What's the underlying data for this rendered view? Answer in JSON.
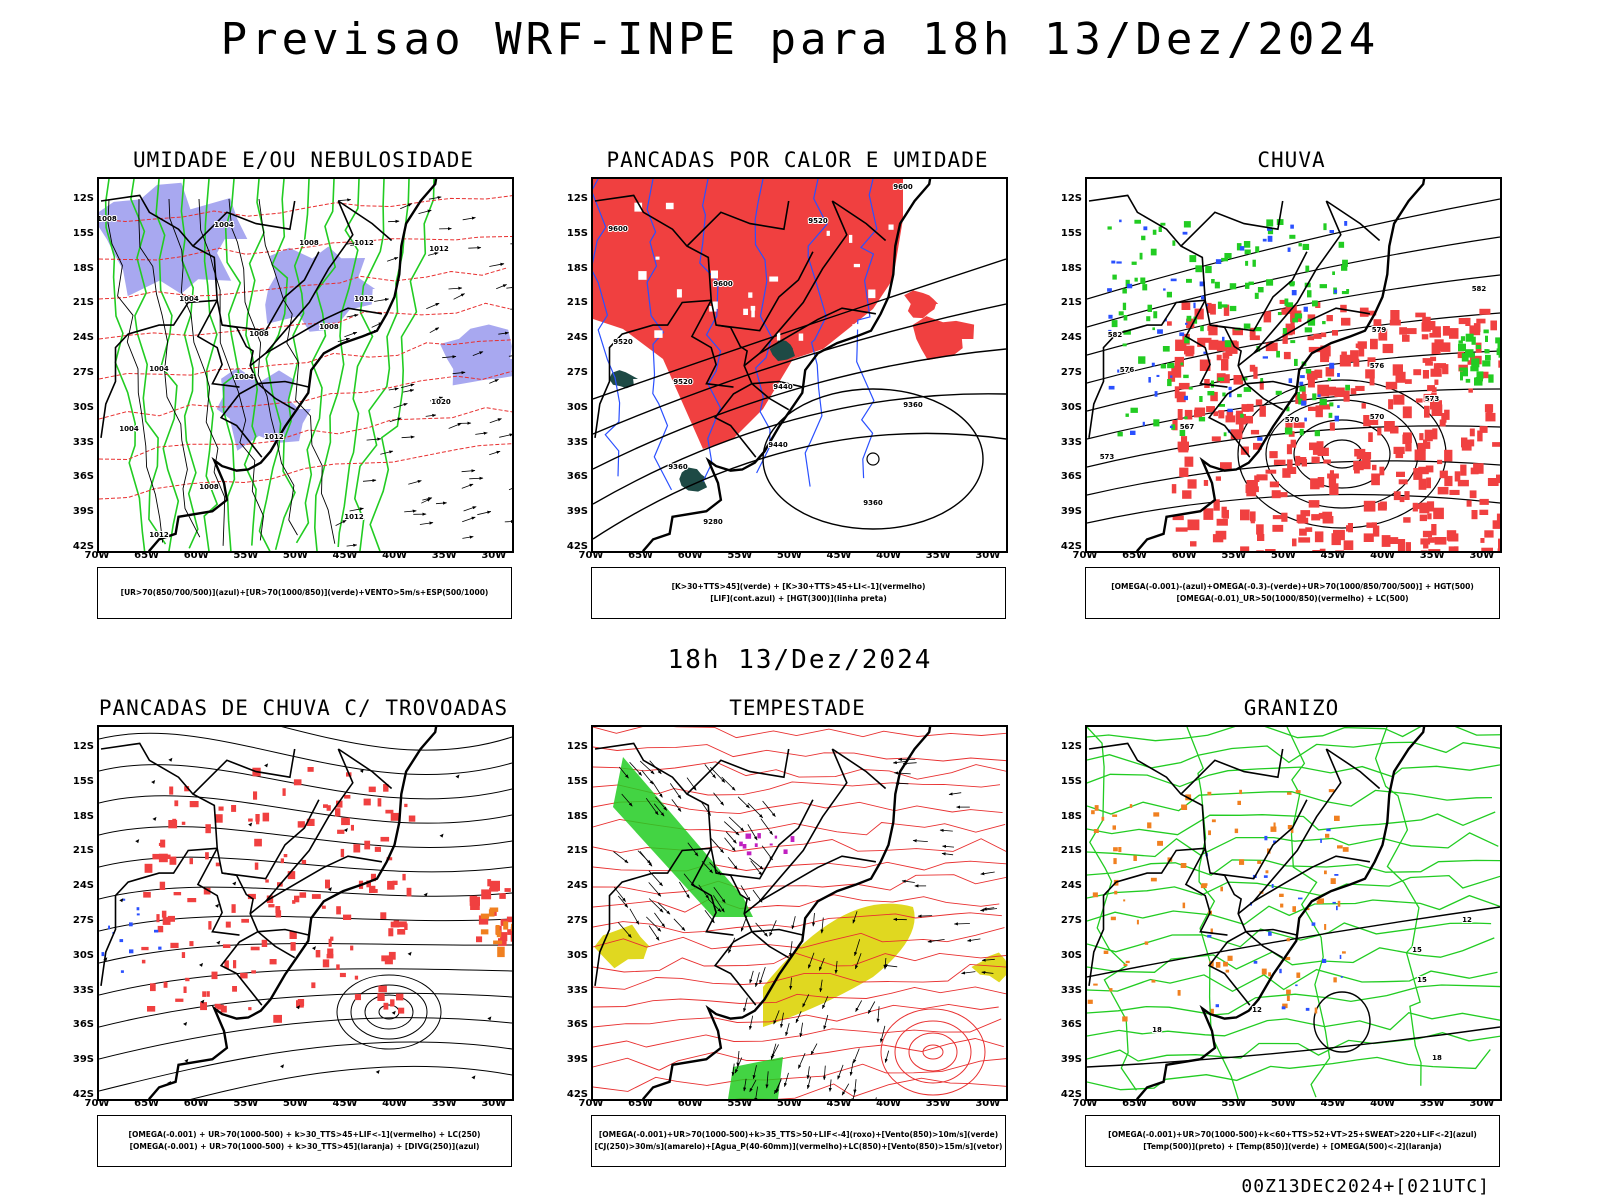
{
  "header": {
    "title": "Previsao WRF-INPE  para 18h 13/Dez/2024",
    "mid_time": "18h 13/Dez/2024",
    "footer": "00Z13DEC2024+[021UTC]"
  },
  "axes": {
    "lat_labels": [
      "12S",
      "15S",
      "18S",
      "21S",
      "24S",
      "27S",
      "30S",
      "33S",
      "36S",
      "39S",
      "42S"
    ],
    "lon_labels": [
      "70W",
      "65W",
      "60W",
      "55W",
      "50W",
      "45W",
      "40W",
      "35W",
      "30W"
    ]
  },
  "panels": [
    {
      "title": "UMIDADE E/OU NEBULOSIDADE",
      "legend": [
        "[UR>70(850/700/500)](azul)+[UR>70(1000/850)](verde)+VENTO>5m/s+ESP(500/1000)"
      ]
    },
    {
      "title": "PANCADAS POR CALOR E UMIDADE",
      "legend": [
        "[K>30+TTS>45](verde) + [K>30+TTS>45+LI<-1](vermelho)",
        "[LIF](cont.azul) + [HGT(300)](linha preta)"
      ]
    },
    {
      "title": "CHUVA",
      "legend": [
        "[OMEGA(-0.001)-(azul)+OMEGA(-0.3)-(verde)+UR>70(1000/850/700/500)] + HGT(500)",
        "[OMEGA(-0.01)_UR>50(1000/850)(vermelho) + LC(500)"
      ]
    },
    {
      "title": "PANCADAS DE CHUVA C/ TROVOADAS",
      "legend": [
        "[OMEGA(-0.001) + UR>70(1000-500) + k>30_TTS>45+LIF<-1](vermelho) + LC(250)",
        "[OMEGA(-0.001) + UR>70(1000-500) + k>30_TTS>45](laranja) + [DIVG(250)](azul)"
      ]
    },
    {
      "title": "TEMPESTADE",
      "legend": [
        "[OMEGA(-0.001)+UR>70(1000-500)+k>35_TTS>50+LIF<-4](roxo)+[Vento(850)>10m/s](verde)",
        "[CJ(250)>30m/s](amarelo)+[Agua_P(40-60mm)](vermelho)+LC(850)+[Vento(850)>15m/s](vetor)"
      ]
    },
    {
      "title": "GRANIZO",
      "legend": [
        "[OMEGA(-0.001)+UR>70(1000-500)+k<60+TTS>52+VT>25+SWEAT>220+LIF<-2](azul)",
        "[Temp(500)](preto) + [Temp(850)](verde) + [OMEGA(500)<-2](laranja)"
      ]
    }
  ],
  "contour_labels": {
    "umidade": [
      "1008",
      "1004",
      "1008",
      "1008",
      "1012",
      "1012",
      "1012",
      "1004",
      "1004",
      "1008",
      "1004",
      "1012",
      "1012",
      "1020",
      "1004",
      "1008",
      "1012"
    ],
    "pancadas": [
      "9600",
      "9600",
      "9520",
      "9600",
      "9520",
      "9440",
      "9520",
      "9360",
      "9440",
      "9360",
      "9360",
      "9280"
    ],
    "chuva": [
      "582",
      "582",
      "579",
      "576",
      "573",
      "570",
      "570",
      "567",
      "573",
      "576"
    ],
    "granizo": [
      "12",
      "15",
      "12",
      "18",
      "15",
      "18"
    ]
  },
  "colors": {
    "blue_shade": "#a8a8f0",
    "green_line": "#22cc22",
    "red_line": "#e83030",
    "red_fill": "#f04040",
    "dark_teal": "#1e4a45",
    "blue_line": "#2a50ff",
    "yellow": "#e0d820",
    "orange": "#f08020",
    "magenta": "#c020c0"
  }
}
